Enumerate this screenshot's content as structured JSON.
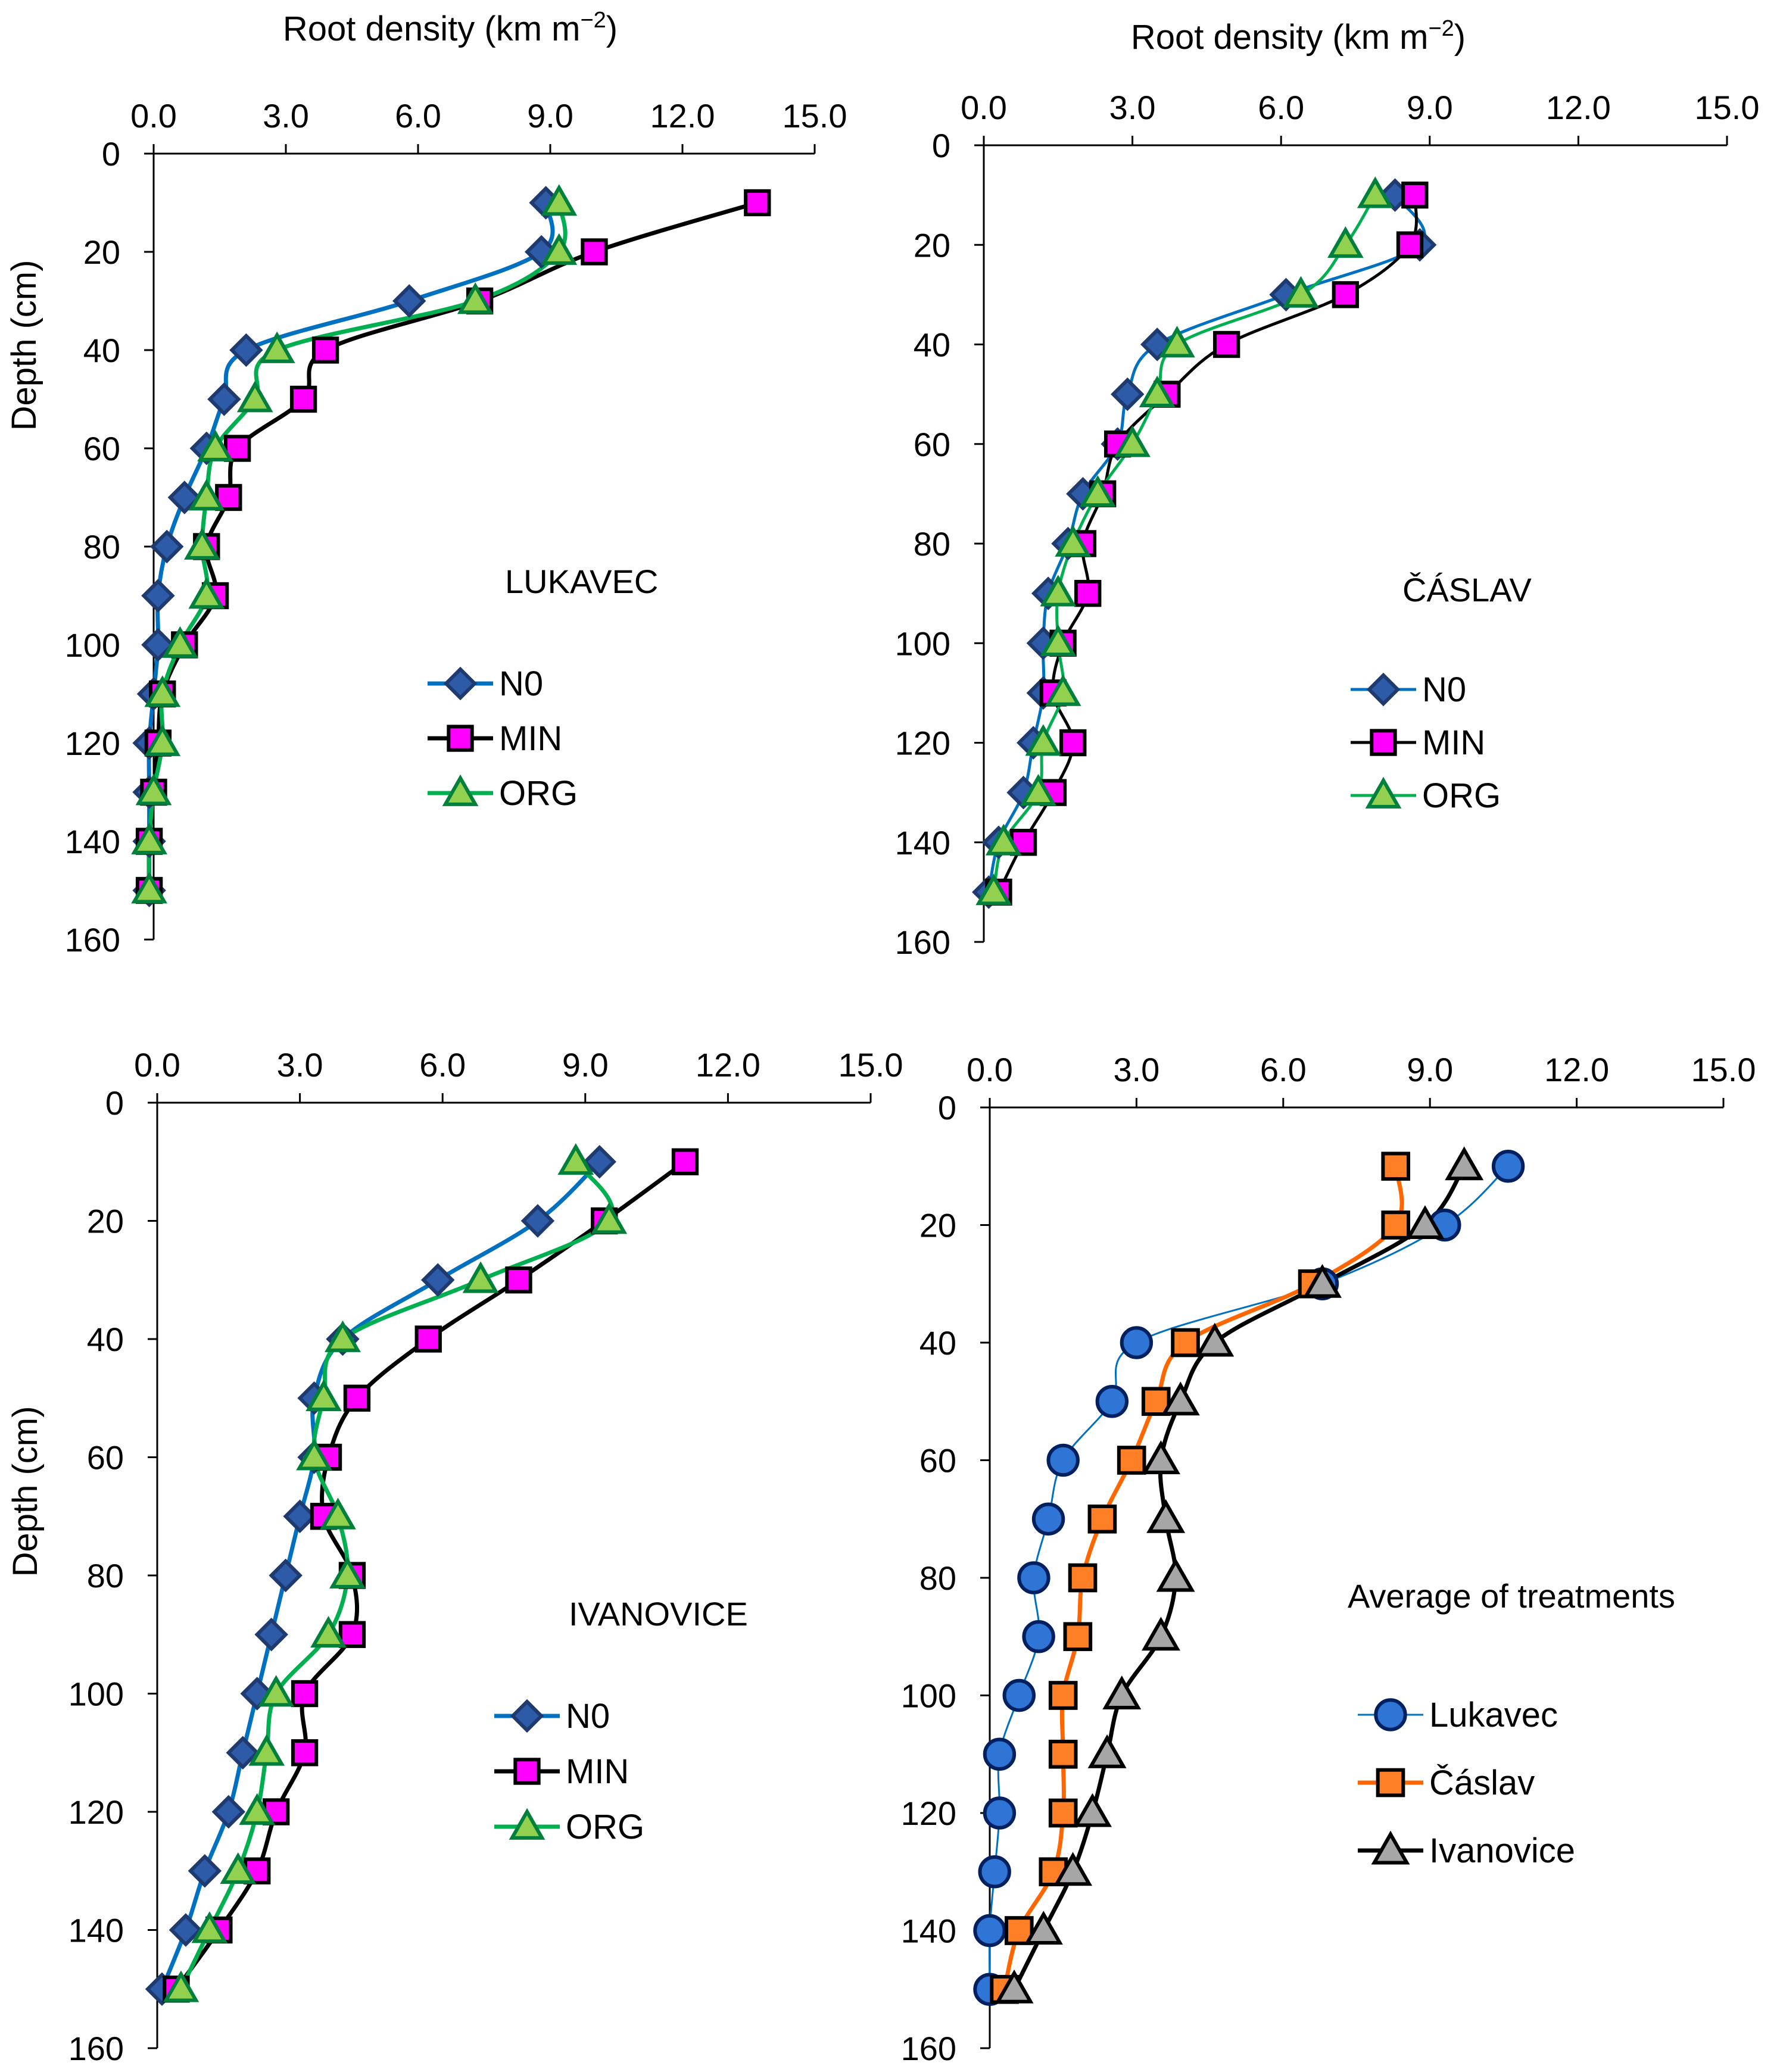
{
  "colors": {
    "axis": "#000000",
    "n0_line": "#0070C0",
    "n0_marker": "#2E5BA8",
    "min_line": "#000000",
    "min_marker": "#FF00FF",
    "org_line": "#00B050",
    "org_marker": "#92D050",
    "lukavec_line": "#0070C0",
    "lukavec_marker": "#2E75D6",
    "caslav_line": "#FF6600",
    "caslav_marker": "#FF7F27",
    "ivanovice_line": "#000000",
    "ivanovice_marker": "#A6A6A6"
  },
  "chart_data": [
    {
      "id": "lukavec",
      "type": "line",
      "panel_label": "LUKAVEC",
      "title": "Root density (km m−2)",
      "xlabel": "Root density (km m−2)",
      "ylabel": "Depth (cm)",
      "xlim": [
        0,
        15
      ],
      "ylim": [
        0,
        160
      ],
      "y_inverted": true,
      "x_ticks": [
        "0.0",
        "3.0",
        "6.0",
        "9.0",
        "12.0",
        "15.0"
      ],
      "y_ticks": [
        "0",
        "20",
        "40",
        "60",
        "80",
        "100",
        "120",
        "140",
        "160"
      ],
      "legend_position": "center-right",
      "depth": [
        10,
        20,
        30,
        40,
        50,
        60,
        70,
        80,
        90,
        100,
        110,
        120,
        130,
        140,
        150
      ],
      "series": [
        {
          "name": "N0",
          "marker": "diamond",
          "values": [
            8.9,
            8.8,
            5.8,
            2.1,
            1.6,
            1.2,
            0.7,
            0.3,
            0.1,
            0.1,
            0.0,
            -0.1,
            -0.1,
            -0.1,
            -0.1
          ]
        },
        {
          "name": "MIN",
          "marker": "square",
          "values": [
            13.7,
            10.0,
            7.4,
            3.9,
            3.4,
            1.9,
            1.7,
            1.2,
            1.4,
            0.7,
            0.2,
            0.1,
            0.0,
            -0.1,
            -0.1
          ]
        },
        {
          "name": "ORG",
          "marker": "triangle",
          "values": [
            9.2,
            9.2,
            7.3,
            2.8,
            2.3,
            1.4,
            1.2,
            1.1,
            1.2,
            0.6,
            0.2,
            0.2,
            0.0,
            -0.1,
            -0.1
          ]
        }
      ]
    },
    {
      "id": "caslav",
      "type": "line",
      "panel_label": "ČÁSLAV",
      "title": "Root density (km m−2)",
      "xlabel": "Root density (km m−2)",
      "ylabel": "",
      "xlim": [
        0,
        15
      ],
      "ylim": [
        0,
        160
      ],
      "y_inverted": true,
      "x_ticks": [
        "0.0",
        "3.0",
        "6.0",
        "9.0",
        "12.0",
        "15.0"
      ],
      "y_ticks": [
        "0",
        "20",
        "40",
        "60",
        "80",
        "100",
        "120",
        "140",
        "160"
      ],
      "legend_position": "center-right",
      "depth": [
        10,
        20,
        30,
        40,
        50,
        60,
        70,
        80,
        90,
        100,
        110,
        120,
        130,
        140,
        150
      ],
      "series": [
        {
          "name": "N0",
          "marker": "diamond",
          "values": [
            8.3,
            8.8,
            6.1,
            3.5,
            2.9,
            2.7,
            2.0,
            1.7,
            1.3,
            1.2,
            1.2,
            1.0,
            0.8,
            0.3,
            0.1
          ]
        },
        {
          "name": "MIN",
          "marker": "square",
          "values": [
            8.7,
            8.6,
            7.3,
            4.9,
            3.7,
            2.7,
            2.4,
            2.0,
            2.1,
            1.6,
            1.4,
            1.8,
            1.4,
            0.8,
            0.3
          ]
        },
        {
          "name": "ORG",
          "marker": "triangle",
          "values": [
            7.9,
            7.3,
            6.4,
            3.9,
            3.5,
            3.0,
            2.3,
            1.8,
            1.5,
            1.5,
            1.6,
            1.2,
            1.1,
            0.4,
            0.2
          ]
        }
      ]
    },
    {
      "id": "ivanovice",
      "type": "line",
      "panel_label": "IVANOVICE",
      "title": "",
      "xlabel": "",
      "ylabel": "Depth (cm)",
      "xlim": [
        0,
        15
      ],
      "ylim": [
        0,
        160
      ],
      "y_inverted": true,
      "x_ticks": [
        "0.0",
        "3.0",
        "6.0",
        "9.0",
        "12.0",
        "15.0"
      ],
      "y_ticks": [
        "0",
        "20",
        "40",
        "60",
        "80",
        "100",
        "120",
        "140",
        "160"
      ],
      "legend_position": "bottom-right",
      "depth": [
        10,
        20,
        30,
        40,
        50,
        60,
        70,
        80,
        90,
        100,
        110,
        120,
        130,
        140,
        150
      ],
      "series": [
        {
          "name": "N0",
          "marker": "diamond",
          "values": [
            9.3,
            8.0,
            5.9,
            3.9,
            3.3,
            3.3,
            3.0,
            2.7,
            2.4,
            2.1,
            1.8,
            1.5,
            1.0,
            0.6,
            0.1
          ]
        },
        {
          "name": "MIN",
          "marker": "square",
          "values": [
            11.1,
            9.4,
            7.6,
            5.7,
            4.2,
            3.6,
            3.5,
            4.1,
            4.1,
            3.1,
            3.1,
            2.5,
            2.1,
            1.3,
            0.4
          ]
        },
        {
          "name": "ORG",
          "marker": "triangle",
          "values": [
            8.8,
            9.5,
            6.8,
            3.9,
            3.5,
            3.3,
            3.8,
            4.0,
            3.6,
            2.5,
            2.3,
            2.1,
            1.7,
            1.1,
            0.5
          ]
        }
      ]
    },
    {
      "id": "average",
      "type": "line",
      "panel_label": "Average of treatments",
      "title": "",
      "xlabel": "",
      "ylabel": "",
      "xlim": [
        0,
        15
      ],
      "ylim": [
        0,
        160
      ],
      "y_inverted": true,
      "x_ticks": [
        "0.0",
        "3.0",
        "6.0",
        "9.0",
        "12.0",
        "15.0"
      ],
      "y_ticks": [
        "0",
        "20",
        "40",
        "60",
        "80",
        "100",
        "120",
        "140",
        "160"
      ],
      "legend_position": "bottom-right",
      "depth": [
        10,
        20,
        30,
        40,
        50,
        60,
        70,
        80,
        90,
        100,
        110,
        120,
        130,
        140,
        150
      ],
      "series": [
        {
          "name": "Lukavec",
          "marker": "circle",
          "values": [
            10.6,
            9.3,
            6.8,
            3.0,
            2.5,
            1.5,
            1.2,
            0.9,
            1.0,
            0.6,
            0.2,
            0.2,
            0.1,
            0.0,
            0.0
          ]
        },
        {
          "name": "Čáslav",
          "marker": "square",
          "values": [
            8.3,
            8.3,
            6.6,
            4.0,
            3.4,
            2.9,
            2.3,
            1.9,
            1.8,
            1.5,
            1.5,
            1.5,
            1.3,
            0.6,
            0.3
          ]
        },
        {
          "name": "Ivanovice",
          "marker": "triangle",
          "values": [
            9.7,
            8.9,
            6.8,
            4.6,
            3.9,
            3.5,
            3.6,
            3.8,
            3.5,
            2.7,
            2.4,
            2.1,
            1.7,
            1.1,
            0.5
          ]
        }
      ]
    }
  ]
}
